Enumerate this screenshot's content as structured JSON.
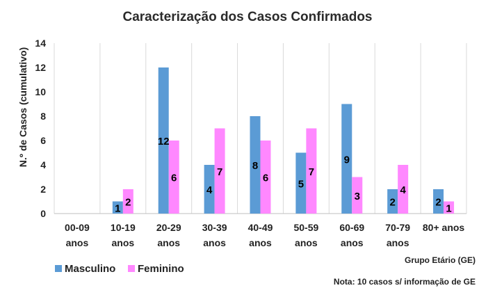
{
  "chart_data": {
    "type": "bar",
    "title": "Caracterização dos Casos Confirmados",
    "ylabel": "N.º de Casos (cumulativo)",
    "xlabel": "Grupo Etário (GE)",
    "note": "Nota: 10 casos s/ informação de GE",
    "categories": [
      [
        "00-09",
        "anos"
      ],
      [
        "10-19",
        "anos"
      ],
      [
        "20-29",
        "anos"
      ],
      [
        "30-39",
        "anos"
      ],
      [
        "40-49",
        "anos"
      ],
      [
        "50-59",
        "anos"
      ],
      [
        "60-69",
        "anos"
      ],
      [
        "70-79",
        "anos"
      ],
      [
        "80+ anos",
        ""
      ]
    ],
    "series": [
      {
        "name": "Masculino",
        "color": "#5b9bd5",
        "values": [
          0,
          1,
          12,
          4,
          8,
          5,
          9,
          2,
          2
        ]
      },
      {
        "name": "Feminino",
        "color": "#ff88ff",
        "values": [
          0,
          2,
          6,
          7,
          6,
          7,
          3,
          4,
          1
        ]
      }
    ],
    "ylim": [
      0,
      14
    ],
    "yticks": [
      0,
      2,
      4,
      6,
      8,
      10,
      12,
      14
    ],
    "grid": "vertical category separators",
    "legend": "bottom-left"
  }
}
